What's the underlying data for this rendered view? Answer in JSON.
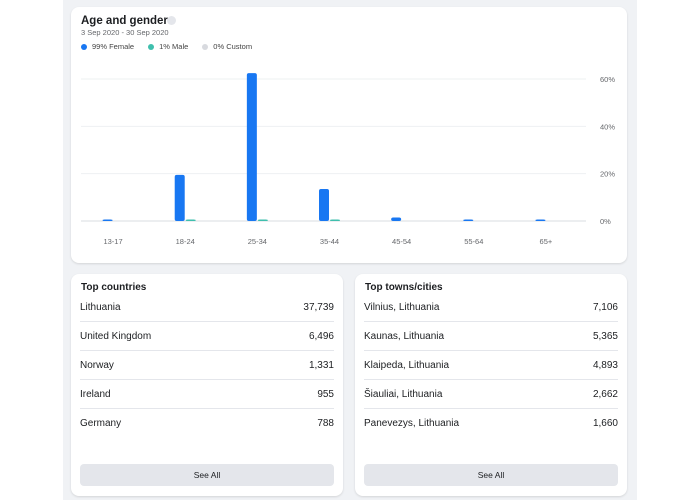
{
  "age_gender": {
    "title": "Age and gender",
    "date_range": "3 Sep 2020 - 30 Sep 2020",
    "legend": [
      {
        "label": "99% Female",
        "color": "#1877f2"
      },
      {
        "label": "1% Male",
        "color": "#3fbfad"
      },
      {
        "label": "0% Custom",
        "color": "#d8dadf"
      }
    ]
  },
  "chart_data": {
    "type": "bar",
    "categories": [
      "13-17",
      "18-24",
      "25-34",
      "35-44",
      "45-54",
      "55-64",
      "65+"
    ],
    "series": [
      {
        "name": "Female",
        "color": "#1877f2",
        "values": [
          0.3,
          19.5,
          62.5,
          13.5,
          1.5,
          0.6,
          0.4
        ]
      },
      {
        "name": "Male",
        "color": "#3fbfad",
        "values": [
          0,
          0.1,
          0.6,
          0.2,
          0,
          0,
          0
        ]
      }
    ],
    "y_ticks": [
      "0%",
      "20%",
      "40%",
      "60%"
    ],
    "ylim": [
      0,
      65
    ],
    "grid": true
  },
  "top_countries": {
    "title": "Top countries",
    "items": [
      {
        "name": "Lithuania",
        "value": "37,739"
      },
      {
        "name": "United Kingdom",
        "value": "6,496"
      },
      {
        "name": "Norway",
        "value": "1,331"
      },
      {
        "name": "Ireland",
        "value": "955"
      },
      {
        "name": "Germany",
        "value": "788"
      }
    ],
    "button": "See All"
  },
  "top_towns": {
    "title": "Top towns/cities",
    "items": [
      {
        "name": "Vilnius, Lithuania",
        "value": "7,106"
      },
      {
        "name": "Kaunas, Lithuania",
        "value": "5,365"
      },
      {
        "name": "Klaipeda, Lithuania",
        "value": "4,893"
      },
      {
        "name": "Šiauliai, Lithuania",
        "value": "2,662"
      },
      {
        "name": "Panevezys, Lithuania",
        "value": "1,660"
      }
    ],
    "button": "See All"
  }
}
